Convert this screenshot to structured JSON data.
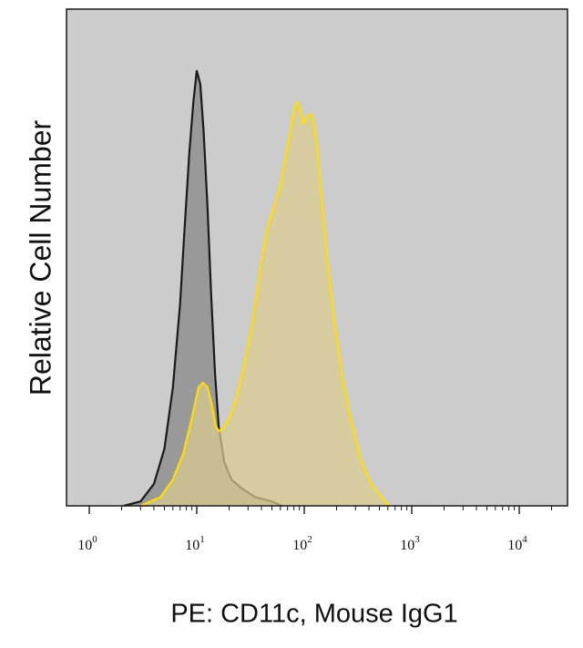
{
  "chart_data": {
    "type": "area",
    "xscale": "log",
    "xlim": [
      1,
      20000
    ],
    "ylim": [
      0,
      100
    ],
    "ylabel": "Relative Cell Number",
    "xlabel": "PE: CD11c, Mouse IgG1",
    "xticks": [
      {
        "value": 1,
        "base": "10",
        "exp": "0"
      },
      {
        "value": 10,
        "base": "10",
        "exp": "1"
      },
      {
        "value": 100,
        "base": "10",
        "exp": "2"
      },
      {
        "value": 1000,
        "base": "10",
        "exp": "3"
      },
      {
        "value": 10000,
        "base": "10",
        "exp": "4"
      }
    ],
    "grid": false,
    "plot_background": "#cccccc",
    "series": [
      {
        "fill": "#999999",
        "stroke": "#1a1a1a",
        "x": [
          2.1,
          3.0,
          4.0,
          5.0,
          6.0,
          7.0,
          7.7,
          8.5,
          9.3,
          10.0,
          10.8,
          11.6,
          12.6,
          13.6,
          14.8,
          16.0,
          18.0,
          21.0,
          26.0,
          35.0,
          50.0,
          62.0
        ],
        "y": [
          0,
          1,
          5,
          13,
          27,
          46,
          63,
          80,
          92,
          99,
          96,
          85,
          68,
          48,
          30,
          18,
          10,
          6,
          4,
          2,
          1,
          0
        ]
      },
      {
        "fill": "#d9cc8f",
        "stroke": "#ffdd00",
        "x": [
          3.0,
          4.6,
          6.0,
          7.5,
          9.0,
          10.4,
          11.4,
          12.6,
          13.8,
          15.0,
          16.3,
          18.0,
          20.0,
          23.0,
          27.0,
          32.0,
          38.0,
          44.0,
          52.0,
          60.0,
          70.0,
          80.0,
          86.0,
          92.0,
          98.0,
          104.0,
          110.0,
          118.0,
          128.0,
          140.0,
          160.0,
          190.0,
          230.0,
          280.0,
          340.0,
          420.0,
          520.0,
          620.0
        ],
        "y": [
          0,
          2,
          6,
          12,
          20,
          27,
          28,
          27,
          23,
          18,
          17,
          18,
          20,
          24,
          31,
          40,
          52,
          62,
          68,
          73,
          82,
          90,
          92,
          90,
          87,
          88,
          89,
          89,
          84,
          74,
          58,
          42,
          28,
          18,
          10,
          5,
          2,
          0
        ]
      }
    ]
  }
}
